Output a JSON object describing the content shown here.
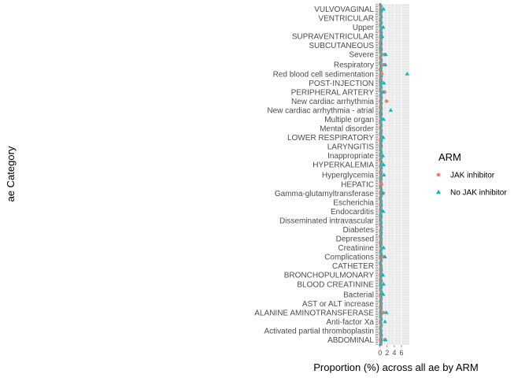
{
  "chart_data": {
    "type": "scatter",
    "orientation": "horizontal",
    "xlabel": "Proportion (%) across all ae by ARM",
    "ylabel": "ae Category",
    "xlim": [
      -0.6,
      8.2
    ],
    "x_ticks": [
      "0",
      "2",
      "4",
      "6"
    ],
    "x_tick_values": [
      0,
      2,
      4,
      6
    ],
    "grid": true,
    "panel_background": "#e5e5e5",
    "legend": {
      "title": "ARM",
      "placement": "right",
      "entries": [
        {
          "label": "JAK inhibitor",
          "color": "#f8766d",
          "shape": "circle"
        },
        {
          "label": "No JAK inhibitor",
          "color": "#00bfc4",
          "shape": "triangle"
        }
      ]
    },
    "category_count": 300,
    "visible_category_labels": [
      "VULVOVAGINAL",
      "VENTRICULAR",
      "Upper",
      "SUPRAVENTRICULAR",
      "SUBCUTANEOUS",
      "Severe",
      "Respiratory",
      "Red blood cell sedimentation",
      "POST-INJECTION",
      "PERIPHERAL ARTERY",
      "New cardiac arrhythmia",
      "New cardiac arrhythmia - atrial",
      "Multiple organ",
      "Mental disorder",
      "LOWER RESPIRATORY",
      "LARYNGITIS",
      "Inappropriate",
      "HYPERKALEMIA",
      "Hyperglycemia",
      "HEPATIC",
      "Gamma-glutamyltransferase",
      "Escherichia",
      "Endocarditis",
      "Disseminated intravascular",
      "Diabetes",
      "Depressed",
      "Creatinine",
      "Complications",
      "CATHETER",
      "BRONCHOPULMONARY",
      "BLOOD CREATININE",
      "Bacterial",
      "AST or ALT increase",
      "ALANINE AMINOTRANSFERASE",
      "Anti-factor Xa",
      "Activated partial thromboplastin",
      "ABDOMINAL"
    ],
    "series": [
      {
        "name": "JAK inhibitor",
        "points": [
          {
            "category": "Severe",
            "x": 1.2
          },
          {
            "category": "Respiratory",
            "x": 1.0
          },
          {
            "category": "Red blood cell sedimentation",
            "x": 0.5
          },
          {
            "category": "PERIPHERAL ARTERY",
            "x": 1.3
          },
          {
            "category": "New cardiac arrhythmia",
            "x": 1.8
          },
          {
            "category": "HEPATIC",
            "x": 0.4
          },
          {
            "category": "Gamma-glutamyltransferase",
            "x": 0.9
          },
          {
            "category": "Complications",
            "x": 1.0
          },
          {
            "category": "ALANINE AMINOTRANSFERASE",
            "x": 1.0
          },
          {
            "category": "ABDOMINAL",
            "x": 1.3
          }
        ]
      },
      {
        "name": "No JAK inhibitor",
        "points": [
          {
            "category": "VULVOVAGINAL",
            "x": 1.0
          },
          {
            "category": "Upper",
            "x": 0.9
          },
          {
            "category": "SUPRAVENTRICULAR",
            "x": 0.6
          },
          {
            "category": "Severe",
            "x": 1.6
          },
          {
            "category": "Respiratory",
            "x": 1.5
          },
          {
            "category": "Red blood cell sedimentation",
            "x": 7.6
          },
          {
            "category": "POST-INJECTION",
            "x": 1.1
          },
          {
            "category": "PERIPHERAL ARTERY",
            "x": 0.8
          },
          {
            "category": "New cardiac arrhythmia - atrial",
            "x": 3.0
          },
          {
            "category": "Multiple organ",
            "x": 1.0
          },
          {
            "category": "LOWER RESPIRATORY",
            "x": 0.9
          },
          {
            "category": "Inappropriate",
            "x": 0.8
          },
          {
            "category": "HYPERKALEMIA",
            "x": 1.0
          },
          {
            "category": "Hyperglycemia",
            "x": 1.1
          },
          {
            "category": "Gamma-glutamyltransferase",
            "x": 0.7
          },
          {
            "category": "Endocarditis",
            "x": 0.9
          },
          {
            "category": "Creatinine",
            "x": 1.0
          },
          {
            "category": "Complications",
            "x": 1.4
          },
          {
            "category": "BRONCHOPULMONARY",
            "x": 0.8
          },
          {
            "category": "BLOOD CREATININE",
            "x": 1.0
          },
          {
            "category": "Bacterial",
            "x": 0.9
          },
          {
            "category": "Anti-factor Xa",
            "x": 1.4
          },
          {
            "category": "ALANINE AMINOTRANSFERASE",
            "x": 1.8
          },
          {
            "category": "ABDOMINAL",
            "x": 1.6
          }
        ]
      }
    ]
  }
}
